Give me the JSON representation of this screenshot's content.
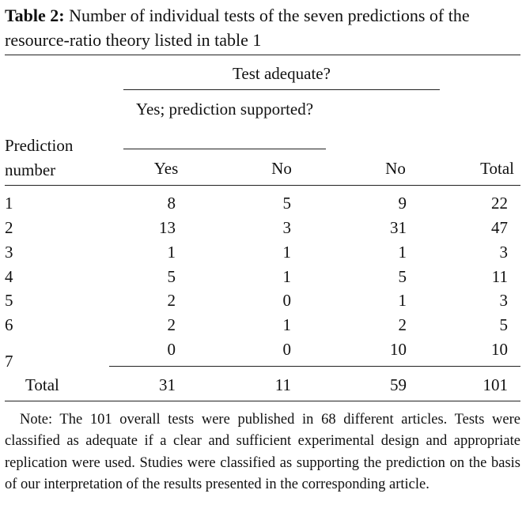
{
  "caption": {
    "label": "Table 2:",
    "text": "Number of individual tests of the seven predictions of the resource-ratio theory listed in table 1"
  },
  "header": {
    "group_test_adequate": "Test adequate?",
    "group_supported": "Yes; prediction supported?",
    "row_label": "Prediction number",
    "columns": [
      "Yes",
      "No",
      "No",
      "Total"
    ]
  },
  "rows": [
    {
      "prediction": "1",
      "values": [
        "8",
        "5",
        "9",
        "22"
      ]
    },
    {
      "prediction": "2",
      "values": [
        "13",
        "3",
        "31",
        "47"
      ]
    },
    {
      "prediction": "3",
      "values": [
        "1",
        "1",
        "1",
        "3"
      ]
    },
    {
      "prediction": "4",
      "values": [
        "5",
        "1",
        "5",
        "11"
      ]
    },
    {
      "prediction": "5",
      "values": [
        "2",
        "0",
        "1",
        "3"
      ]
    },
    {
      "prediction": "6",
      "values": [
        "2",
        "1",
        "2",
        "5"
      ]
    },
    {
      "prediction": "7",
      "values": [
        "0",
        "0",
        "10",
        "10"
      ]
    }
  ],
  "total_row": {
    "label": "Total",
    "values": [
      "31",
      "11",
      "59",
      "101"
    ]
  },
  "note": "Note: The 101 overall tests were published in 68 different articles. Tests were classified as adequate if a clear and sufficient experimental design and appropriate replication were used. Studies were classified as supporting the prediction on the basis of our interpretation of the results presented in the corresponding article."
}
